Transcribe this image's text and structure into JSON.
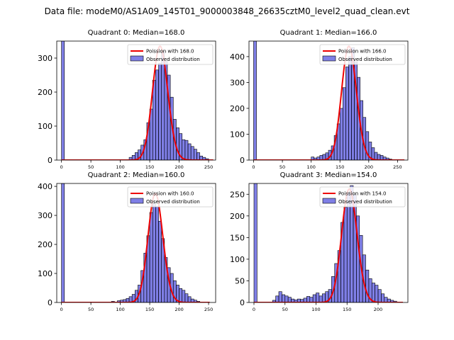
{
  "figure": {
    "title": "Data file: modeM0/AS1A09_145T01_9000003848_26635cztM0_level2_quad_clean.evt"
  },
  "chart_data": [
    {
      "type": "bar",
      "title": "Quadrant 0: Median=168.0",
      "xlim": [
        -8,
        262
      ],
      "ylim": [
        0,
        350
      ],
      "xticks": [
        0,
        50,
        100,
        150,
        200,
        250
      ],
      "yticks": [
        0,
        100,
        200,
        300
      ],
      "bin_width": 5,
      "hist": [
        [
          0,
          350
        ],
        [
          115,
          8
        ],
        [
          120,
          14
        ],
        [
          125,
          22
        ],
        [
          130,
          30
        ],
        [
          135,
          44
        ],
        [
          140,
          60
        ],
        [
          145,
          110
        ],
        [
          150,
          150
        ],
        [
          155,
          235
        ],
        [
          160,
          265
        ],
        [
          165,
          285
        ],
        [
          170,
          320
        ],
        [
          175,
          290
        ],
        [
          180,
          250
        ],
        [
          185,
          185
        ],
        [
          190,
          120
        ],
        [
          195,
          95
        ],
        [
          200,
          78
        ],
        [
          205,
          60
        ],
        [
          210,
          58
        ],
        [
          215,
          48
        ],
        [
          220,
          40
        ],
        [
          225,
          32
        ],
        [
          230,
          22
        ],
        [
          235,
          12
        ],
        [
          240,
          8
        ],
        [
          245,
          4
        ]
      ],
      "poisson_mean": 168.0,
      "poisson_scale": 335,
      "poisson_range": [
        0,
        258
      ],
      "legend": [
        "Poission with 168.0",
        "Observed distribution"
      ]
    },
    {
      "type": "bar",
      "title": "Quadrant 1: Median=166.0",
      "xlim": [
        -8,
        268
      ],
      "ylim": [
        0,
        460
      ],
      "xticks": [
        0,
        50,
        100,
        150,
        200,
        250
      ],
      "yticks": [
        0,
        100,
        200,
        300,
        400
      ],
      "bin_width": 5,
      "hist": [
        [
          0,
          460
        ],
        [
          100,
          12
        ],
        [
          105,
          8
        ],
        [
          110,
          12
        ],
        [
          115,
          18
        ],
        [
          120,
          22
        ],
        [
          125,
          28
        ],
        [
          130,
          38
        ],
        [
          135,
          55
        ],
        [
          140,
          95
        ],
        [
          145,
          140
        ],
        [
          150,
          200
        ],
        [
          155,
          280
        ],
        [
          160,
          360
        ],
        [
          165,
          400
        ],
        [
          170,
          435
        ],
        [
          175,
          380
        ],
        [
          180,
          320
        ],
        [
          185,
          230
        ],
        [
          190,
          165
        ],
        [
          195,
          110
        ],
        [
          200,
          70
        ],
        [
          205,
          48
        ],
        [
          210,
          30
        ],
        [
          215,
          22
        ],
        [
          220,
          18
        ],
        [
          225,
          12
        ],
        [
          230,
          8
        ],
        [
          235,
          4
        ]
      ],
      "poisson_mean": 166.0,
      "poisson_scale": 440,
      "poisson_range": [
        0,
        262
      ],
      "legend": [
        "Poission with 166.0",
        "Observed distribution"
      ]
    },
    {
      "type": "bar",
      "title": "Quadrant 2: Median=160.0",
      "xlim": [
        -8,
        262
      ],
      "ylim": [
        0,
        410
      ],
      "xticks": [
        0,
        50,
        100,
        150,
        200,
        250
      ],
      "yticks": [
        0,
        100,
        200,
        300,
        400
      ],
      "bin_width": 5,
      "hist": [
        [
          0,
          410
        ],
        [
          85,
          4
        ],
        [
          95,
          6
        ],
        [
          100,
          8
        ],
        [
          105,
          10
        ],
        [
          110,
          14
        ],
        [
          115,
          20
        ],
        [
          120,
          28
        ],
        [
          125,
          42
        ],
        [
          130,
          60
        ],
        [
          135,
          110
        ],
        [
          140,
          170
        ],
        [
          145,
          230
        ],
        [
          150,
          310
        ],
        [
          155,
          340
        ],
        [
          160,
          330
        ],
        [
          165,
          280
        ],
        [
          170,
          220
        ],
        [
          175,
          155
        ],
        [
          180,
          120
        ],
        [
          185,
          100
        ],
        [
          190,
          75
        ],
        [
          195,
          60
        ],
        [
          200,
          48
        ],
        [
          205,
          42
        ],
        [
          210,
          30
        ],
        [
          215,
          20
        ],
        [
          220,
          12
        ],
        [
          225,
          8
        ],
        [
          230,
          4
        ]
      ],
      "poisson_mean": 160.0,
      "poisson_scale": 375,
      "poisson_range": [
        0,
        252
      ],
      "legend": [
        "Poission with 160.0",
        "Observed distribution"
      ]
    },
    {
      "type": "bar",
      "title": "Quadrant 3: Median=154.0",
      "xlim": [
        -8,
        248
      ],
      "ylim": [
        0,
        275
      ],
      "xticks": [
        0,
        50,
        100,
        150,
        200
      ],
      "yticks": [
        0,
        50,
        100,
        150,
        200,
        250
      ],
      "bin_width": 5,
      "hist": [
        [
          0,
          275
        ],
        [
          30,
          5
        ],
        [
          35,
          15
        ],
        [
          40,
          25
        ],
        [
          45,
          18
        ],
        [
          50,
          15
        ],
        [
          55,
          12
        ],
        [
          60,
          8
        ],
        [
          65,
          6
        ],
        [
          70,
          8
        ],
        [
          75,
          7
        ],
        [
          80,
          10
        ],
        [
          85,
          14
        ],
        [
          90,
          12
        ],
        [
          95,
          18
        ],
        [
          100,
          22
        ],
        [
          105,
          15
        ],
        [
          110,
          20
        ],
        [
          115,
          25
        ],
        [
          120,
          30
        ],
        [
          125,
          60
        ],
        [
          130,
          90
        ],
        [
          135,
          120
        ],
        [
          140,
          185
        ],
        [
          145,
          220
        ],
        [
          150,
          255
        ],
        [
          155,
          270
        ],
        [
          160,
          250
        ],
        [
          165,
          200
        ],
        [
          170,
          155
        ],
        [
          175,
          110
        ],
        [
          180,
          75
        ],
        [
          185,
          55
        ],
        [
          190,
          45
        ],
        [
          195,
          40
        ],
        [
          200,
          30
        ],
        [
          205,
          20
        ],
        [
          210,
          12
        ],
        [
          215,
          8
        ],
        [
          220,
          5
        ],
        [
          225,
          3
        ]
      ],
      "poisson_mean": 154.0,
      "poisson_scale": 262,
      "poisson_range": [
        0,
        240
      ],
      "legend": [
        "Poission with 154.0",
        "Observed distribution"
      ]
    }
  ]
}
